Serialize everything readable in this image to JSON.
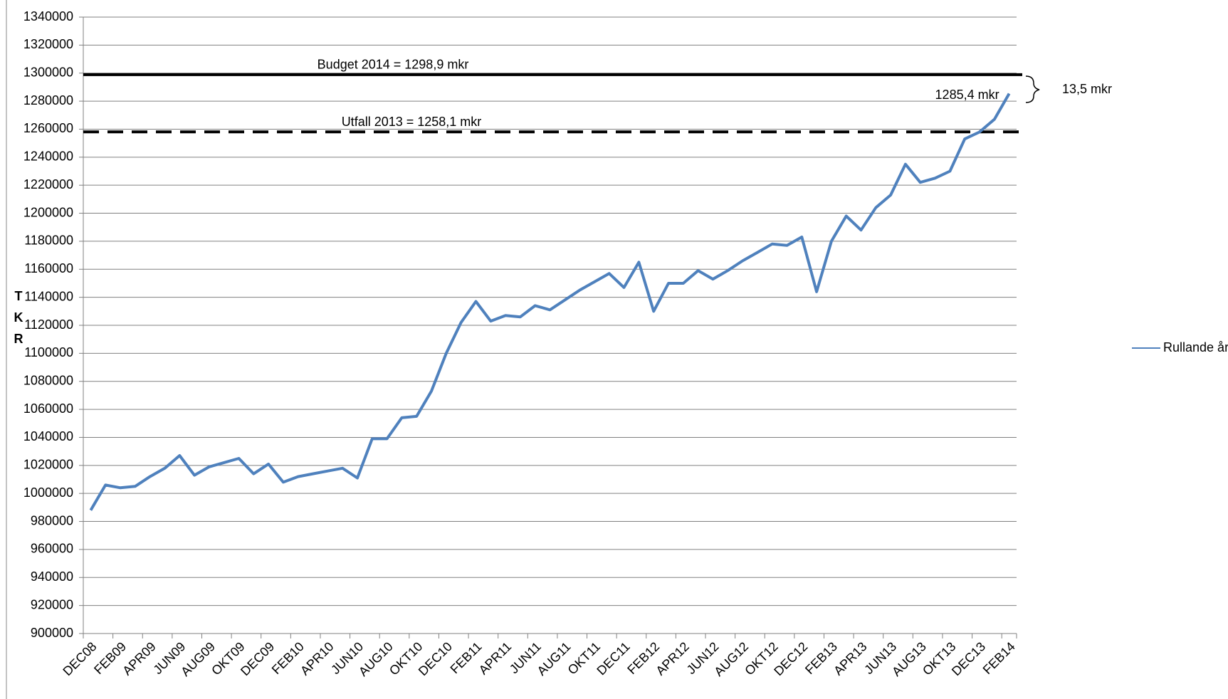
{
  "chart_data": {
    "type": "line",
    "y_label": "TKR",
    "categories": [
      "DEC08",
      null,
      "FEB09",
      null,
      "APR09",
      null,
      "JUN09",
      null,
      "AUG09",
      null,
      "OKT09",
      null,
      "DEC09",
      null,
      "FEB10",
      null,
      "APR10",
      null,
      "JUN10",
      null,
      "AUG10",
      null,
      "OKT10",
      null,
      "DEC10",
      null,
      "FEB11",
      null,
      "APR11",
      null,
      "JUN11",
      null,
      "AUG11",
      null,
      "OKT11",
      null,
      "DEC11",
      null,
      "FEB12",
      null,
      "APR12",
      null,
      "JUN12",
      null,
      "AUG12",
      null,
      "OKT12",
      null,
      "DEC12",
      null,
      "FEB13",
      null,
      "APR13",
      null,
      "JUN13",
      null,
      "AUG13",
      null,
      "OKT13",
      null,
      "DEC13",
      null,
      "FEB14"
    ],
    "series": [
      {
        "name": "Rullande årsvärde",
        "color": "#4f81bd",
        "values": [
          988000,
          1006000,
          1004000,
          1005000,
          1012000,
          1018000,
          1027000,
          1013000,
          1019000,
          1022000,
          1025000,
          1014000,
          1021000,
          1008000,
          1012000,
          1014000,
          1016000,
          1018000,
          1011000,
          1039000,
          1039000,
          1054000,
          1055000,
          1073000,
          1100000,
          1122000,
          1137000,
          1123000,
          1127000,
          1126000,
          1134000,
          1131000,
          1138000,
          1145000,
          1151000,
          1157000,
          1147000,
          1165000,
          1130000,
          1150000,
          1150000,
          1159000,
          1153000,
          1159000,
          1166000,
          1172000,
          1178000,
          1177000,
          1183000,
          1144000,
          1180000,
          1198000,
          1188000,
          1204000,
          1213000,
          1235000,
          1222000,
          1225000,
          1230000,
          1253000,
          1258000,
          1267000,
          1285400
        ]
      }
    ],
    "reference_lines": [
      {
        "value": 1298900,
        "label": "Budget 2014 = 1298,9  mkr",
        "style": "solid",
        "color": "#000000"
      },
      {
        "value": 1258100,
        "label": "Utfall 2013 = 1258,1  mkr",
        "style": "dashed",
        "color": "#000000"
      }
    ],
    "annotations": [
      {
        "text": "1285,4 mkr"
      },
      {
        "text": "13,5 mkr"
      }
    ],
    "ylim": [
      900000,
      1340000
    ],
    "yticks": [
      900000,
      920000,
      940000,
      960000,
      980000,
      1000000,
      1020000,
      1040000,
      1060000,
      1080000,
      1100000,
      1120000,
      1140000,
      1160000,
      1180000,
      1200000,
      1220000,
      1240000,
      1260000,
      1280000,
      1300000,
      1320000,
      1340000
    ],
    "grid": true,
    "legend": "right"
  }
}
